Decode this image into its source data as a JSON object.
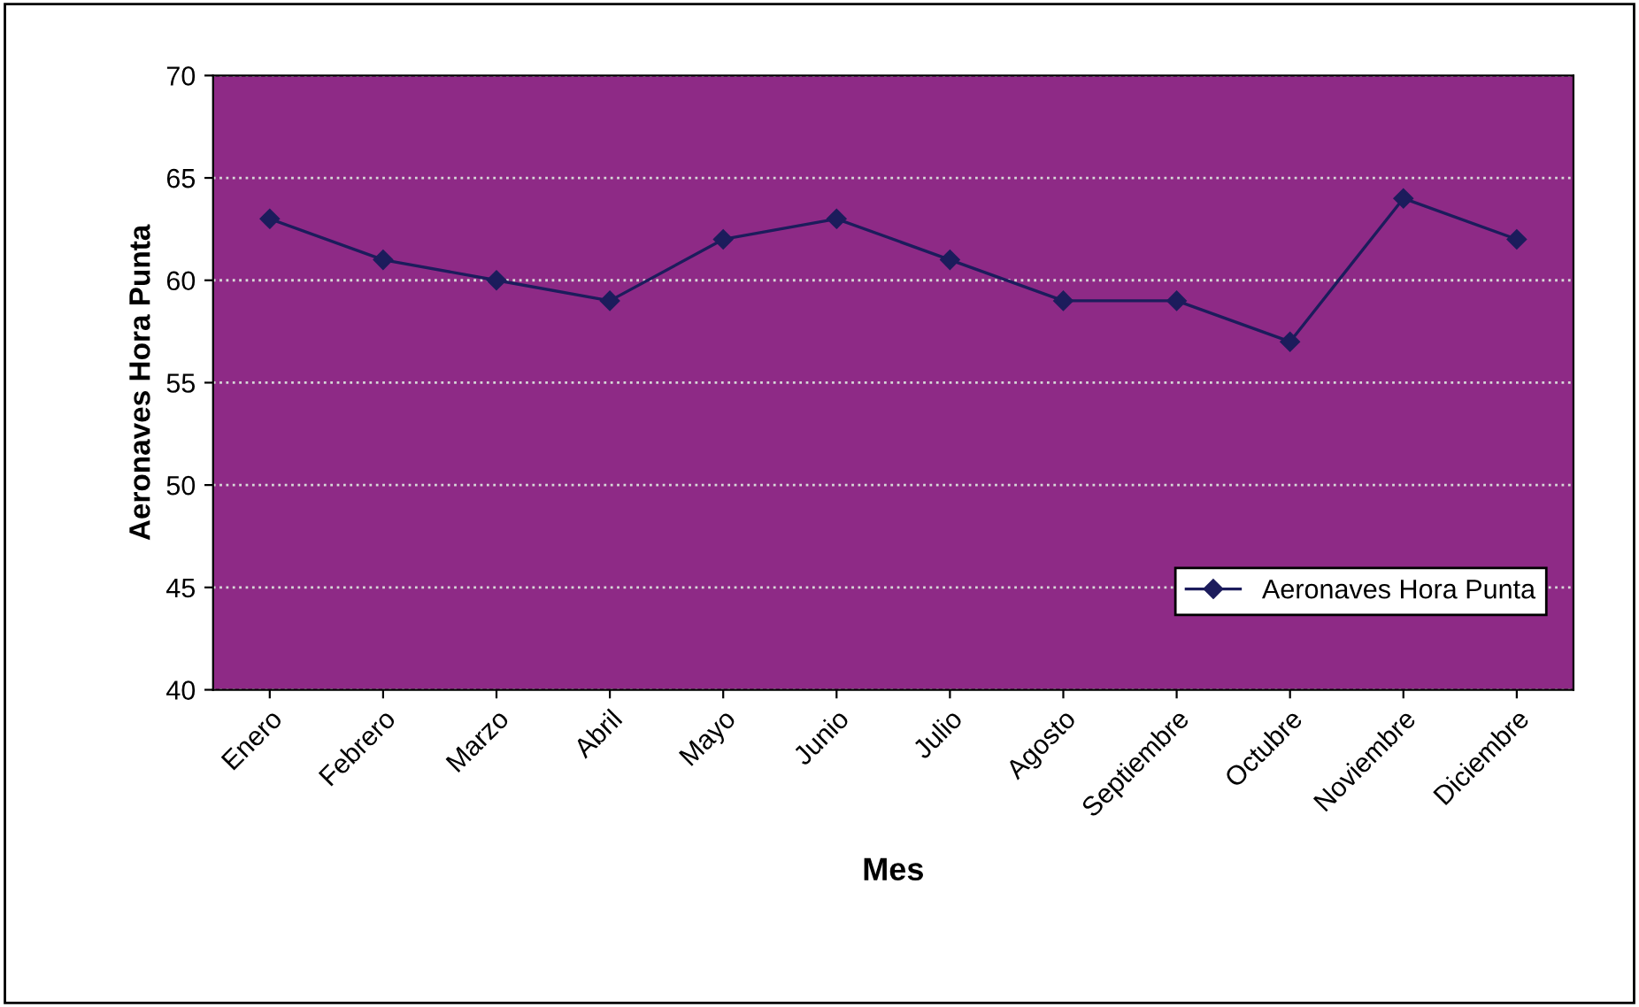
{
  "chart_data": {
    "type": "line",
    "xlabel": "Mes",
    "ylabel": "Aeronaves Hora Punta",
    "categories": [
      "Enero",
      "Febrero",
      "Marzo",
      "Abril",
      "Mayo",
      "Junio",
      "Julio",
      "Agosto",
      "Septiembre",
      "Octubre",
      "Noviembre",
      "Diciembre"
    ],
    "series": [
      {
        "name": "Aeronaves Hora Punta",
        "color": "#1c1c5c",
        "values": [
          63,
          61,
          60,
          59,
          62,
          63,
          61,
          59,
          59,
          57,
          64,
          62
        ]
      }
    ],
    "ylim": [
      40,
      70
    ],
    "yticks": [
      40,
      45,
      50,
      55,
      60,
      65,
      70
    ],
    "grid": "y",
    "legend": "bottom right",
    "marker": "diamond",
    "line_style": "solid"
  }
}
